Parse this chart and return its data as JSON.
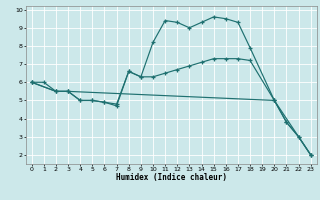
{
  "xlabel": "Humidex (Indice chaleur)",
  "background_color": "#cce8ea",
  "grid_color": "#ffffff",
  "line_color": "#1e7070",
  "xlim": [
    -0.5,
    23.5
  ],
  "ylim": [
    1.5,
    10.2
  ],
  "yticks": [
    2,
    3,
    4,
    5,
    6,
    7,
    8,
    9,
    10
  ],
  "xticks": [
    0,
    1,
    2,
    3,
    4,
    5,
    6,
    7,
    8,
    9,
    10,
    11,
    12,
    13,
    14,
    15,
    16,
    17,
    18,
    19,
    20,
    21,
    22,
    23
  ],
  "line1_x": [
    0,
    1,
    2,
    3,
    4,
    5,
    6,
    7,
    8,
    9,
    10,
    11,
    12,
    13,
    14,
    15,
    16,
    17,
    18,
    20,
    21,
    22,
    23
  ],
  "line1_y": [
    6.0,
    6.0,
    5.5,
    5.5,
    5.0,
    5.0,
    4.9,
    4.7,
    6.6,
    6.3,
    8.2,
    9.4,
    9.3,
    9.0,
    9.3,
    9.6,
    9.5,
    9.3,
    7.9,
    5.0,
    3.8,
    3.0,
    2.0
  ],
  "line2_x": [
    0,
    2,
    3,
    4,
    5,
    6,
    7,
    8,
    9,
    10,
    11,
    12,
    13,
    14,
    15,
    16,
    17,
    18,
    20,
    21,
    22,
    23
  ],
  "line2_y": [
    6.0,
    5.5,
    5.5,
    5.0,
    5.0,
    4.9,
    4.8,
    6.6,
    6.3,
    6.3,
    6.5,
    6.7,
    6.9,
    7.1,
    7.3,
    7.3,
    7.3,
    7.2,
    5.0,
    3.8,
    3.0,
    2.0
  ],
  "line3_x": [
    0,
    2,
    3,
    20,
    23
  ],
  "line3_y": [
    6.0,
    5.5,
    5.5,
    5.0,
    2.0
  ]
}
